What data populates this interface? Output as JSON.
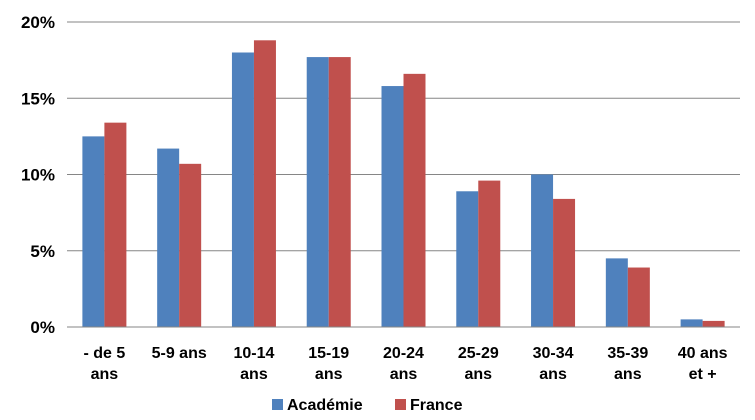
{
  "chart_data": {
    "type": "bar",
    "categories": [
      [
        "- de 5",
        "ans"
      ],
      [
        "5-9 ans"
      ],
      [
        "10-14",
        "ans"
      ],
      [
        "15-19",
        "ans"
      ],
      [
        "20-24",
        "ans"
      ],
      [
        "25-29",
        "ans"
      ],
      [
        "30-34",
        "ans"
      ],
      [
        "35-39",
        "ans"
      ],
      [
        "40 ans",
        "et +"
      ]
    ],
    "series": [
      {
        "name": "Académie",
        "color": "#4F81BD",
        "values": [
          12.5,
          11.7,
          18.0,
          17.7,
          15.8,
          8.9,
          10.0,
          4.5,
          0.5
        ]
      },
      {
        "name": "France",
        "color": "#C0504D",
        "values": [
          13.4,
          10.7,
          18.8,
          17.7,
          16.6,
          9.6,
          8.4,
          3.9,
          0.4
        ]
      }
    ],
    "yticks": [
      {
        "value": 0,
        "label": "0%"
      },
      {
        "value": 5,
        "label": "5%"
      },
      {
        "value": 10,
        "label": "10%"
      },
      {
        "value": 15,
        "label": "15%"
      },
      {
        "value": 20,
        "label": "20%"
      }
    ],
    "ylim": [
      0,
      20
    ],
    "grid": true,
    "legend_position": "bottom",
    "title": "",
    "xlabel": "",
    "ylabel": ""
  }
}
